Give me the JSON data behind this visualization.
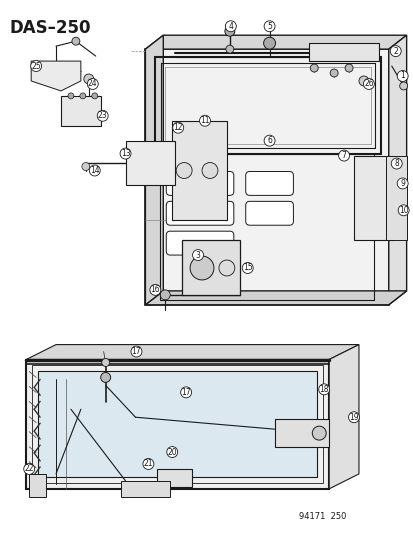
{
  "title": "DAS–250",
  "part_number": "94171  250",
  "bg_color": "#ffffff",
  "lc": "#1a1a1a",
  "fig_width": 4.14,
  "fig_height": 5.33,
  "dpi": 100,
  "title_fontsize": 11,
  "pn_fontsize": 6,
  "callout_fontsize": 5.5,
  "callout_r": 0.013
}
